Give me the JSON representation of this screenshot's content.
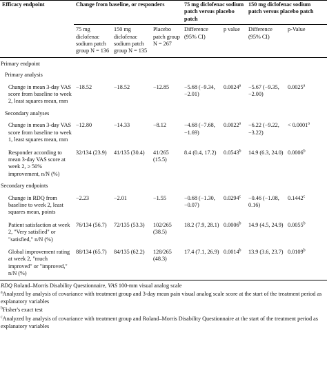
{
  "table": {
    "header_groups": [
      "Efficacy endpoint",
      "Change from baseline, or responders",
      "75 mg diclofenac sodium patch versus placebo patch",
      "150 mg diclofenac sodium patch versus placebo patch"
    ],
    "columns": [
      "75 mg diclofenac sodium patch group N = 136",
      "150 mg diclofenac sodium patch group N = 135",
      "Placebo patch group N = 267",
      "Difference (95% CI)",
      "p value",
      "Difference (95% CI)",
      "p-Value"
    ],
    "rows": [
      {
        "kind": "section",
        "label": "Primary endpoint"
      },
      {
        "kind": "subsection",
        "label": "Primary analysis"
      },
      {
        "kind": "data",
        "label": "Change in mean 3-day VAS score from baseline to week 2, least squares mean, mm",
        "cells": [
          "−18.52",
          "−18.52",
          "−12.85",
          "−5.68 (−9.34, −2.01)",
          {
            "text": "0.0024",
            "sup": "a"
          },
          "−5.67 (−9.35, −2.00)",
          {
            "text": "0.0025",
            "sup": "a"
          }
        ]
      },
      {
        "kind": "subsection",
        "label": "Secondary analyses"
      },
      {
        "kind": "data",
        "label": "Change in mean 3-day VAS score from baseline to week 1, least squares mean, mm",
        "cells": [
          "−12.80",
          "−14.33",
          "−8.12",
          "−4.68 (−7.68, −1.69)",
          {
            "text": "0.0022",
            "sup": "a"
          },
          "−6.22 (−9.22, −3.22)",
          {
            "text": "< 0.0001",
            "sup": "a"
          }
        ]
      },
      {
        "kind": "data",
        "label": "Responder according to mean 3-day VAS score at week 2, ≥ 50% improvement, n/N (%)",
        "cells": [
          "32/134 (23.9)",
          "41/135 (30.4)",
          "41/265 (15.5)",
          "8.4 (0.4, 17.2)",
          {
            "text": "0.0543",
            "sup": "b"
          },
          "14.9 (6.3, 24.0)",
          {
            "text": "0.0006",
            "sup": "b"
          }
        ]
      },
      {
        "kind": "section",
        "label": "Secondary endpoints"
      },
      {
        "kind": "data",
        "label": "Change in RDQ from baseline to week 2, least squares mean, points",
        "cells": [
          "−2.23",
          "−2.01",
          "−1.55",
          "−0.68 (−1.30, −0.07)",
          {
            "text": "0.0294",
            "sup": "c"
          },
          "−0.46 (−1.08, 0.16)",
          {
            "text": "0.1442",
            "sup": "c"
          }
        ]
      },
      {
        "kind": "data",
        "label": "Patient satisfaction at week 2, \"Very satisfied\" or \"satisfied,\" n/N (%)",
        "cells": [
          "76/134 (56.7)",
          "72/135 (53.3)",
          "102/265 (38.5)",
          "18.2 (7.9, 28.1)",
          {
            "text": "0.0006",
            "sup": "b"
          },
          "14.9 (4.5, 24.9)",
          {
            "text": "0.0055",
            "sup": "b"
          }
        ]
      },
      {
        "kind": "data",
        "label": "Global improvement rating at week 2, \"much improved\" or \"improved,\" n/N (%)",
        "cells": [
          "88/134 (65.7)",
          "84/135 (62.2)",
          "128/265 (48.3)",
          "17.4 (7.1, 26.9)",
          {
            "text": "0.0014",
            "sup": "b"
          },
          "13.9 (3.6, 23.7)",
          {
            "text": "0.0109",
            "sup": "b"
          }
        ]
      }
    ]
  },
  "footnotes": {
    "abbreviations": [
      {
        "abbr": "RDQ",
        "text": "Roland–Morris Disability Questionnaire,"
      },
      {
        "abbr": "VAS",
        "text": "100-mm visual analog scale"
      }
    ],
    "notes": [
      {
        "marker": "a",
        "text": "Analyzed by analysis of covariance with treatment group and 3-day mean pain visual analog scale score at the start of the treatment period as explanatory variables"
      },
      {
        "marker": "b",
        "text": "Fisher's exact test"
      },
      {
        "marker": "c",
        "text": "Analyzed by analysis of covariance with treatment group and Roland–Morris Disability Questionnaire at the start of the treatment period as explanatory variables"
      }
    ]
  }
}
